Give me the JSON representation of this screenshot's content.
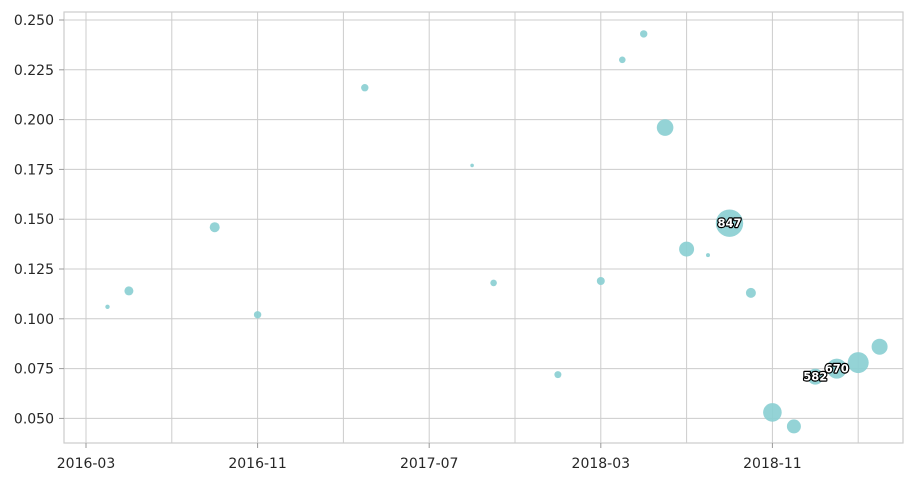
{
  "figure": {
    "background": "#ffffff"
  },
  "chart_data": {
    "type": "scatter",
    "subtype": "bubble",
    "title": "",
    "xlabel": "",
    "ylabel": "",
    "grid": true,
    "legend": null,
    "colors": {
      "marker": "#8bcfd2",
      "grid": "#cccccc",
      "spine": "#cccccc",
      "tick_mark": "#999999",
      "tick_text": "#262626",
      "bubble_label_fill": "#ffffff",
      "bubble_label_stroke": "#000000"
    },
    "y_axis": {
      "ticks": [
        0.05,
        0.075,
        0.1,
        0.125,
        0.15,
        0.175,
        0.2,
        0.225,
        0.25
      ],
      "tick_labels": [
        "0.050",
        "0.075",
        "0.100",
        "0.125",
        "0.150",
        "0.175",
        "0.200",
        "0.225",
        "0.250"
      ],
      "range": [
        0.0375,
        0.254
      ]
    },
    "x_axis": {
      "gridline_months": [
        "2016-03",
        "2016-07",
        "2016-11",
        "2017-03",
        "2017-07",
        "2017-11",
        "2018-03",
        "2018-07",
        "2018-11",
        "2019-03"
      ],
      "labeled_months": [
        "2016-03",
        "2016-11",
        "2017-07",
        "2018-03",
        "2018-11"
      ],
      "range_months": [
        "2016-01",
        "2019-06"
      ]
    },
    "points": [
      {
        "date": "2016-04",
        "value": 0.106,
        "r": 2.2,
        "label": ""
      },
      {
        "date": "2016-05",
        "value": 0.114,
        "r": 4.5,
        "label": ""
      },
      {
        "date": "2016-09",
        "value": 0.146,
        "r": 5.0,
        "label": ""
      },
      {
        "date": "2016-11",
        "value": 0.102,
        "r": 3.7,
        "label": ""
      },
      {
        "date": "2017-04",
        "value": 0.216,
        "r": 3.7,
        "label": ""
      },
      {
        "date": "2017-09",
        "value": 0.177,
        "r": 1.8,
        "label": ""
      },
      {
        "date": "2017-10",
        "value": 0.118,
        "r": 3.3,
        "label": ""
      },
      {
        "date": "2018-01",
        "value": 0.072,
        "r": 3.5,
        "label": ""
      },
      {
        "date": "2018-03",
        "value": 0.119,
        "r": 4.0,
        "label": ""
      },
      {
        "date": "2018-04",
        "value": 0.23,
        "r": 3.3,
        "label": ""
      },
      {
        "date": "2018-05",
        "value": 0.243,
        "r": 3.7,
        "label": ""
      },
      {
        "date": "2018-06",
        "value": 0.196,
        "r": 8.3,
        "label": ""
      },
      {
        "date": "2018-07",
        "value": 0.135,
        "r": 7.5,
        "label": ""
      },
      {
        "date": "2018-08",
        "value": 0.132,
        "r": 2.0,
        "label": ""
      },
      {
        "date": "2018-09",
        "value": 0.148,
        "r": 13.7,
        "label": "847"
      },
      {
        "date": "2018-10",
        "value": 0.113,
        "r": 5.0,
        "label": ""
      },
      {
        "date": "2018-11",
        "value": 0.053,
        "r": 9.3,
        "label": ""
      },
      {
        "date": "2018-12",
        "value": 0.046,
        "r": 7.0,
        "label": ""
      },
      {
        "date": "2019-01",
        "value": 0.071,
        "r": 8.0,
        "label": "582"
      },
      {
        "date": "2019-02",
        "value": 0.075,
        "r": 10.0,
        "label": "670"
      },
      {
        "date": "2019-03",
        "value": 0.078,
        "r": 10.5,
        "label": ""
      },
      {
        "date": "2019-04",
        "value": 0.086,
        "r": 8.0,
        "label": ""
      }
    ]
  }
}
